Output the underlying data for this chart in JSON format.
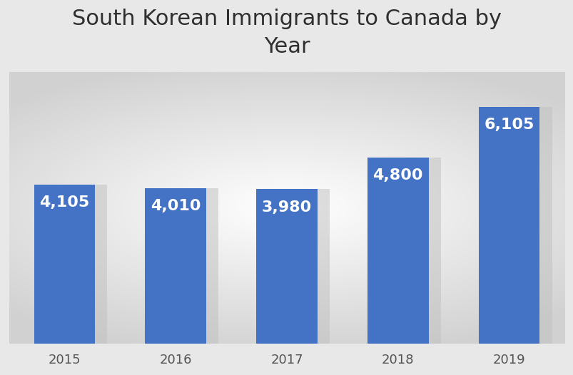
{
  "categories": [
    "2015",
    "2016",
    "2017",
    "2018",
    "2019"
  ],
  "values": [
    4105,
    4010,
    3980,
    4800,
    6105
  ],
  "labels": [
    "4,105",
    "4,010",
    "3,980",
    "4,800",
    "6,105"
  ],
  "bar_color": "#4472C4",
  "title": "South Korean Immigrants to Canada by\nYear",
  "title_fontsize": 22,
  "title_color": "#2f2f2f",
  "label_color": "#ffffff",
  "label_fontsize": 16,
  "tick_fontsize": 13,
  "tick_color": "#555555",
  "ylim": [
    0,
    7000
  ],
  "shadow_color": "#c0c0c0",
  "bar_width": 0.55
}
